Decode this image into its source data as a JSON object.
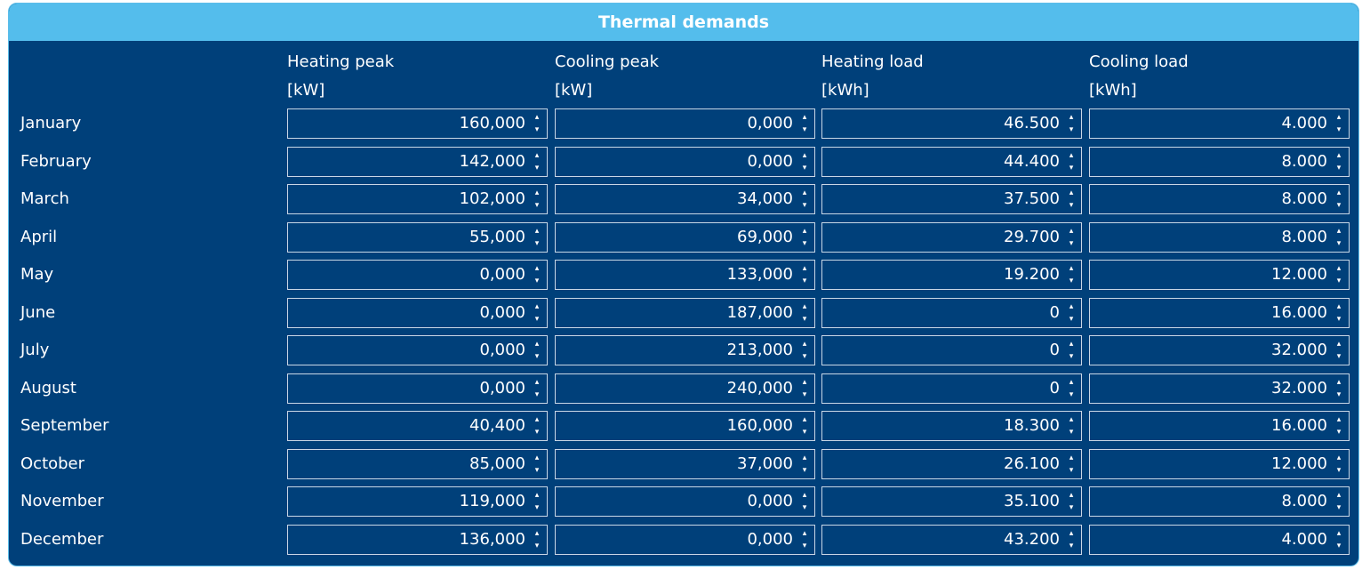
{
  "title": "Thermal demands",
  "columns": [
    {
      "label": "Heating peak",
      "unit": "[kW]"
    },
    {
      "label": "Cooling peak",
      "unit": "[kW]"
    },
    {
      "label": "Heating load",
      "unit": "[kWh]"
    },
    {
      "label": "Cooling load",
      "unit": "[kWh]"
    }
  ],
  "rows": [
    {
      "month": "January",
      "values": [
        "160,000",
        "0,000",
        "46.500",
        "4.000"
      ]
    },
    {
      "month": "February",
      "values": [
        "142,000",
        "0,000",
        "44.400",
        "8.000"
      ]
    },
    {
      "month": "March",
      "values": [
        "102,000",
        "34,000",
        "37.500",
        "8.000"
      ]
    },
    {
      "month": "April",
      "values": [
        "55,000",
        "69,000",
        "29.700",
        "8.000"
      ]
    },
    {
      "month": "May",
      "values": [
        "0,000",
        "133,000",
        "19.200",
        "12.000"
      ]
    },
    {
      "month": "June",
      "values": [
        "0,000",
        "187,000",
        "0",
        "16.000"
      ]
    },
    {
      "month": "July",
      "values": [
        "0,000",
        "213,000",
        "0",
        "32.000"
      ]
    },
    {
      "month": "August",
      "values": [
        "0,000",
        "240,000",
        "0",
        "32.000"
      ]
    },
    {
      "month": "September",
      "values": [
        "40,400",
        "160,000",
        "18.300",
        "16.000"
      ]
    },
    {
      "month": "October",
      "values": [
        "85,000",
        "37,000",
        "26.100",
        "12.000"
      ]
    },
    {
      "month": "November",
      "values": [
        "119,000",
        "0,000",
        "35.100",
        "8.000"
      ]
    },
    {
      "month": "December",
      "values": [
        "136,000",
        "0,000",
        "43.200",
        "4.000"
      ]
    }
  ],
  "icons": {
    "up": "spin-up-arrow-icon",
    "down": "spin-down-arrow-icon"
  },
  "colors": {
    "panel": "#00407a",
    "title_bar": "#54bdec",
    "text": "#ffffff",
    "border": "#c9d7e6"
  }
}
